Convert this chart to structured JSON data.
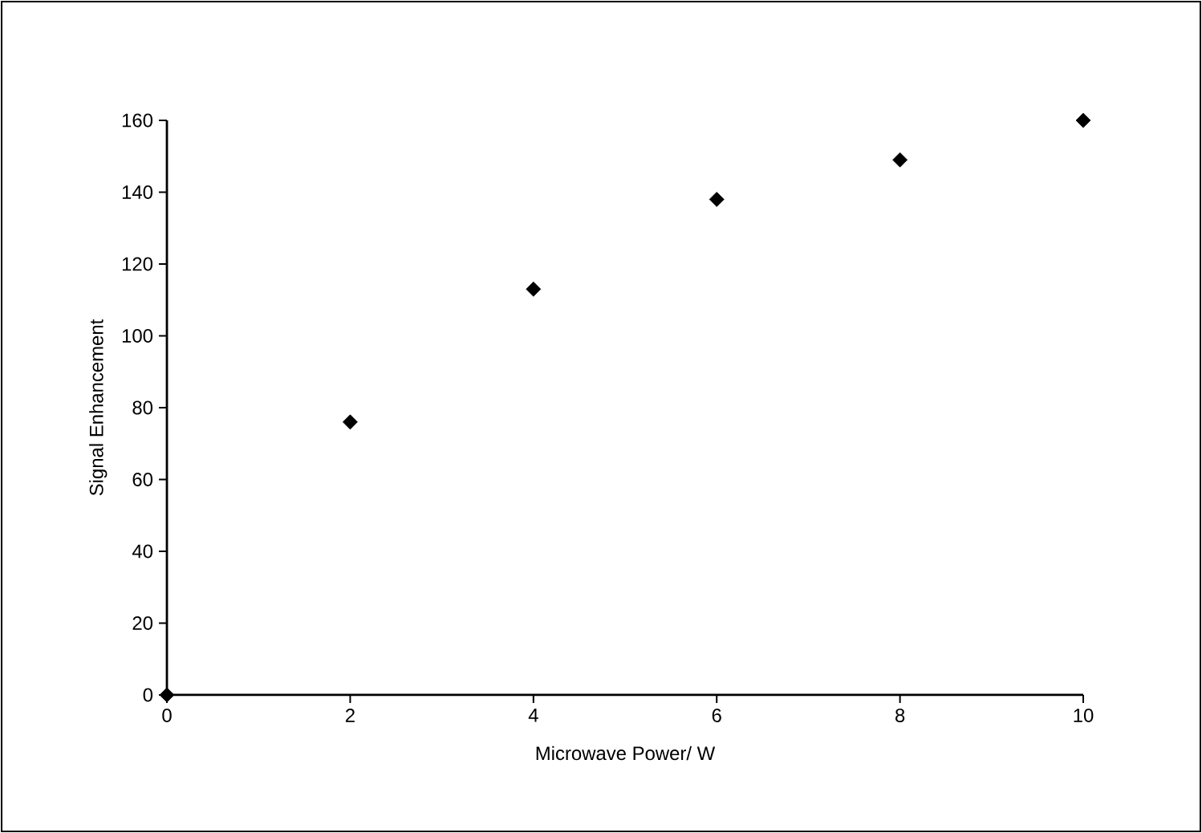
{
  "chart_data": {
    "type": "scatter",
    "xlabel": "Microwave Power/ W",
    "ylabel": "Signal Enhancement",
    "x": [
      0,
      2,
      4,
      6,
      8,
      10
    ],
    "series": [
      {
        "color": "#000000",
        "values": [
          0,
          76,
          113,
          138,
          149,
          160
        ]
      }
    ],
    "xlim": [
      0,
      10
    ],
    "xticks": [
      0,
      2,
      4,
      6,
      8,
      10
    ],
    "ylim": [
      0,
      160
    ],
    "yticks": [
      0,
      20,
      40,
      60,
      80,
      100,
      120,
      140,
      160
    ],
    "marker": "diamond"
  }
}
